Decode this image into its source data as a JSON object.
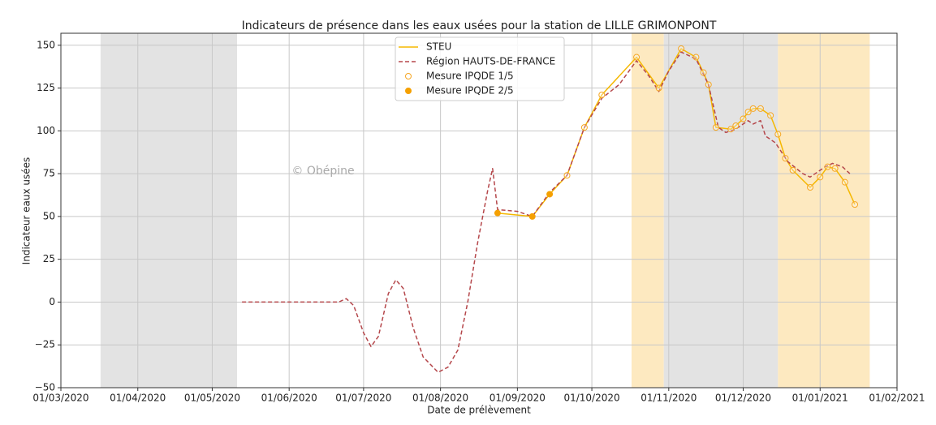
{
  "chart_data": {
    "type": "line",
    "title": "Indicateurs de présence dans les eaux usées pour la station de LILLE GRIMONPONT",
    "x_label": "Date de prélèvement",
    "y_label": "Indicateur eaux usées",
    "watermark": "© Obépine",
    "xlim": [
      "2020-03-01",
      "2021-02-01"
    ],
    "ylim": [
      -50,
      157
    ],
    "xticks": [
      {
        "value": "2020-03-01",
        "label": "01/03/2020"
      },
      {
        "value": "2020-04-01",
        "label": "01/04/2020"
      },
      {
        "value": "2020-05-01",
        "label": "01/05/2020"
      },
      {
        "value": "2020-06-01",
        "label": "01/06/2020"
      },
      {
        "value": "2020-07-01",
        "label": "01/07/2020"
      },
      {
        "value": "2020-08-01",
        "label": "01/08/2020"
      },
      {
        "value": "2020-09-01",
        "label": "01/09/2020"
      },
      {
        "value": "2020-10-01",
        "label": "01/10/2020"
      },
      {
        "value": "2020-11-01",
        "label": "01/11/2020"
      },
      {
        "value": "2020-12-01",
        "label": "01/12/2020"
      },
      {
        "value": "2021-01-01",
        "label": "01/01/2021"
      },
      {
        "value": "2021-02-01",
        "label": "01/02/2021"
      }
    ],
    "yticks": [
      {
        "value": -50,
        "label": "−50"
      },
      {
        "value": -25,
        "label": "−25"
      },
      0,
      25,
      50,
      75,
      100,
      125,
      150
    ],
    "grid": true,
    "legend": "upper center",
    "periods": [
      {
        "start": "2020-03-17",
        "end": "2020-05-11",
        "color": "#e3e3e3"
      },
      {
        "start": "2020-10-17",
        "end": "2020-10-30",
        "color": "#fde9c0"
      },
      {
        "start": "2020-10-30",
        "end": "2020-12-15",
        "color": "#e3e3e3"
      },
      {
        "start": "2020-12-15",
        "end": "2021-01-21",
        "color": "#fde9c0"
      }
    ],
    "series": [
      {
        "name": "STEU",
        "color": "#f5b800",
        "style": "solid",
        "x": [
          "2020-08-24",
          "2020-09-07",
          "2020-09-14",
          "2020-09-21",
          "2020-09-28",
          "2020-10-05",
          "2020-10-19",
          "2020-10-28",
          "2020-11-06",
          "2020-11-12",
          "2020-11-15",
          "2020-11-17",
          "2020-11-20",
          "2020-11-26",
          "2020-11-28",
          "2020-12-01",
          "2020-12-03",
          "2020-12-05",
          "2020-12-08",
          "2020-12-12",
          "2020-12-15",
          "2020-12-18",
          "2020-12-21",
          "2020-12-28",
          "2021-01-01",
          "2021-01-04",
          "2021-01-07",
          "2021-01-11",
          "2021-01-15"
        ],
        "values": [
          52,
          50,
          63,
          74,
          102,
          121,
          143,
          125,
          148,
          143,
          134,
          127,
          102,
          101,
          103,
          107,
          111,
          113,
          113,
          109,
          98,
          84,
          77,
          67,
          73,
          79,
          78,
          70,
          57
        ]
      },
      {
        "name": "Région HAUTS-DE-FRANCE",
        "color": "#b5474b",
        "style": "dashed",
        "x": [
          "2020-05-13",
          "2020-06-21",
          "2020-06-24",
          "2020-06-27",
          "2020-07-01",
          "2020-07-04",
          "2020-07-07",
          "2020-07-11",
          "2020-07-14",
          "2020-07-17",
          "2020-07-21",
          "2020-07-25",
          "2020-07-31",
          "2020-08-04",
          "2020-08-08",
          "2020-08-12",
          "2020-08-16",
          "2020-08-20",
          "2020-08-22",
          "2020-08-24",
          "2020-09-01",
          "2020-09-07",
          "2020-09-14",
          "2020-09-21",
          "2020-09-28",
          "2020-10-05",
          "2020-10-12",
          "2020-10-19",
          "2020-10-24",
          "2020-10-28",
          "2020-11-01",
          "2020-11-06",
          "2020-11-12",
          "2020-11-17",
          "2020-11-21",
          "2020-11-24",
          "2020-11-28",
          "2020-12-03",
          "2020-12-05",
          "2020-12-08",
          "2020-12-10",
          "2020-12-14",
          "2020-12-19",
          "2020-12-25",
          "2020-12-28",
          "2021-01-03",
          "2021-01-06",
          "2021-01-10",
          "2021-01-13"
        ],
        "values": [
          0,
          0,
          2,
          -2,
          -18,
          -26,
          -20,
          5,
          13,
          8,
          -15,
          -32,
          -41,
          -38,
          -28,
          0,
          35,
          65,
          78,
          54,
          53,
          50,
          64,
          74,
          102,
          119,
          127,
          141,
          132,
          123,
          135,
          146,
          142,
          127,
          102,
          99,
          101,
          106,
          104,
          106,
          97,
          93,
          82,
          75,
          73,
          79,
          81,
          79,
          75
        ]
      },
      {
        "name": "Mesure IPQDE 1/5",
        "color": "#f5a623",
        "marker": "hollow",
        "x": [
          "2020-09-21",
          "2020-09-28",
          "2020-10-05",
          "2020-10-19",
          "2020-10-28",
          "2020-11-06",
          "2020-11-12",
          "2020-11-15",
          "2020-11-17",
          "2020-11-20",
          "2020-11-26",
          "2020-11-28",
          "2020-12-01",
          "2020-12-03",
          "2020-12-05",
          "2020-12-08",
          "2020-12-12",
          "2020-12-15",
          "2020-12-18",
          "2020-12-21",
          "2020-12-28",
          "2021-01-01",
          "2021-01-04",
          "2021-01-07",
          "2021-01-11",
          "2021-01-15"
        ],
        "values": [
          74,
          102,
          121,
          143,
          125,
          148,
          143,
          134,
          127,
          102,
          101,
          103,
          107,
          111,
          113,
          113,
          109,
          98,
          84,
          77,
          67,
          73,
          79,
          78,
          70,
          57
        ]
      },
      {
        "name": "Mesure IPQDE 2/5",
        "color": "#f5a000",
        "marker": "filled",
        "x": [
          "2020-08-24",
          "2020-09-07",
          "2020-09-14"
        ],
        "values": [
          52,
          50,
          63
        ]
      }
    ]
  }
}
